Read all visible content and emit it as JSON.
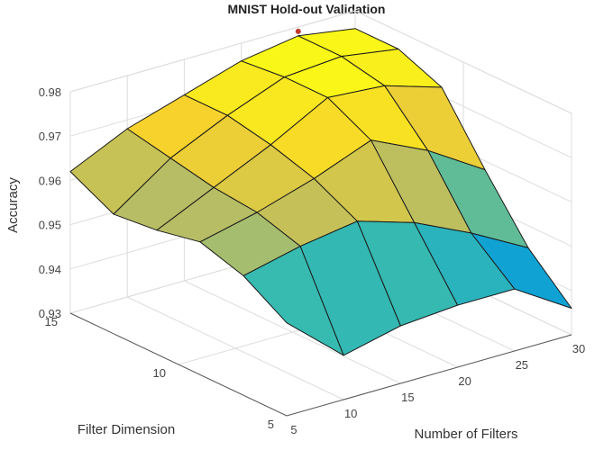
{
  "chart_data": {
    "type": "surface",
    "title": "MNIST Hold-out Validation",
    "xlabel": "Number of Filters",
    "ylabel": "Filter Dimension",
    "zlabel": "Accuracy",
    "x_ticks": [
      "5",
      "10",
      "15",
      "20",
      "25",
      "30"
    ],
    "y_ticks": [
      "5",
      "10",
      "15"
    ],
    "z_ticks": [
      "0.93",
      "0.94",
      "0.95",
      "0.96",
      "0.97",
      "0.98"
    ],
    "xlim": [
      5,
      30
    ],
    "ylim": [
      5,
      15
    ],
    "zlim": [
      0.93,
      0.98
    ],
    "x": [
      5,
      10,
      15,
      20,
      25,
      30
    ],
    "y": [
      15,
      13,
      11,
      9,
      7,
      5
    ],
    "z": [
      [
        0.962,
        0.968,
        0.972,
        0.976,
        0.978,
        0.976
      ],
      [
        0.957,
        0.966,
        0.972,
        0.977,
        0.978,
        0.976
      ],
      [
        0.958,
        0.964,
        0.97,
        0.977,
        0.976,
        0.972
      ],
      [
        0.96,
        0.963,
        0.967,
        0.972,
        0.966,
        0.958
      ],
      [
        0.957,
        0.96,
        0.962,
        0.958,
        0.952,
        0.945
      ],
      [
        0.951,
        0.94,
        0.943,
        0.944,
        0.944,
        0.936
      ]
    ],
    "colormap": [
      "#3e26a8",
      "#0fa4d4",
      "#3bbcac",
      "#b7bd64",
      "#f8d22c",
      "#f9fb15"
    ],
    "marker": {
      "x": 25,
      "y": 15,
      "z": 0.979,
      "color": "#c0392b"
    },
    "grid": true
  }
}
